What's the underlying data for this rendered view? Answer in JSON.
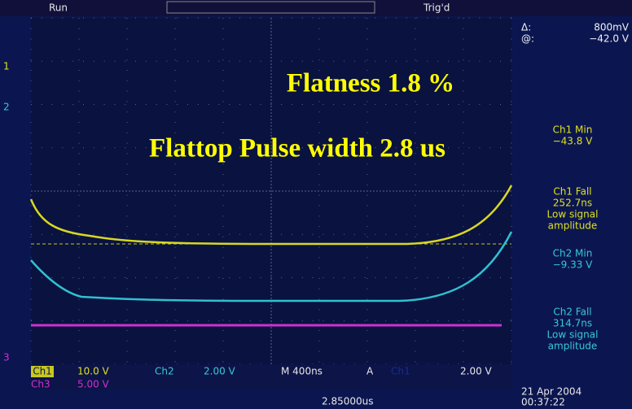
{
  "status": {
    "run": "Run",
    "trigger": "Trig'd"
  },
  "cursor": {
    "delta_label": "Δ:",
    "delta_value": "800mV",
    "at_label": "@:",
    "at_value": "−42.0 V"
  },
  "measurements": [
    {
      "label": "Ch1 Min",
      "value": "−43.8 V"
    },
    {
      "label": "Ch1 Fall",
      "value": "252.7ns",
      "note": [
        "Low signal",
        "amplitude"
      ]
    },
    {
      "label": "Ch2 Min",
      "value": "−9.33 V"
    },
    {
      "label": "Ch2 Fall",
      "value": "314.7ns",
      "note": [
        "Low signal",
        "amplitude"
      ]
    }
  ],
  "annotations": [
    "Flatness 1.8 %",
    "Flattop Pulse width 2.8 us"
  ],
  "markers": [
    "1",
    "2",
    "3"
  ],
  "channels": [
    {
      "name": "Ch1",
      "scale": "10.0 V"
    },
    {
      "name": "Ch2",
      "scale": "2.00 V"
    },
    {
      "name": "Ch3",
      "scale": "5.00 V"
    }
  ],
  "timebase": "M 400ns",
  "trigger": {
    "mode": "A",
    "source": "Ch1",
    "level": "2.00 V"
  },
  "position": "2.85000us",
  "date": "21 Apr 2004",
  "time": "00:37:22"
}
